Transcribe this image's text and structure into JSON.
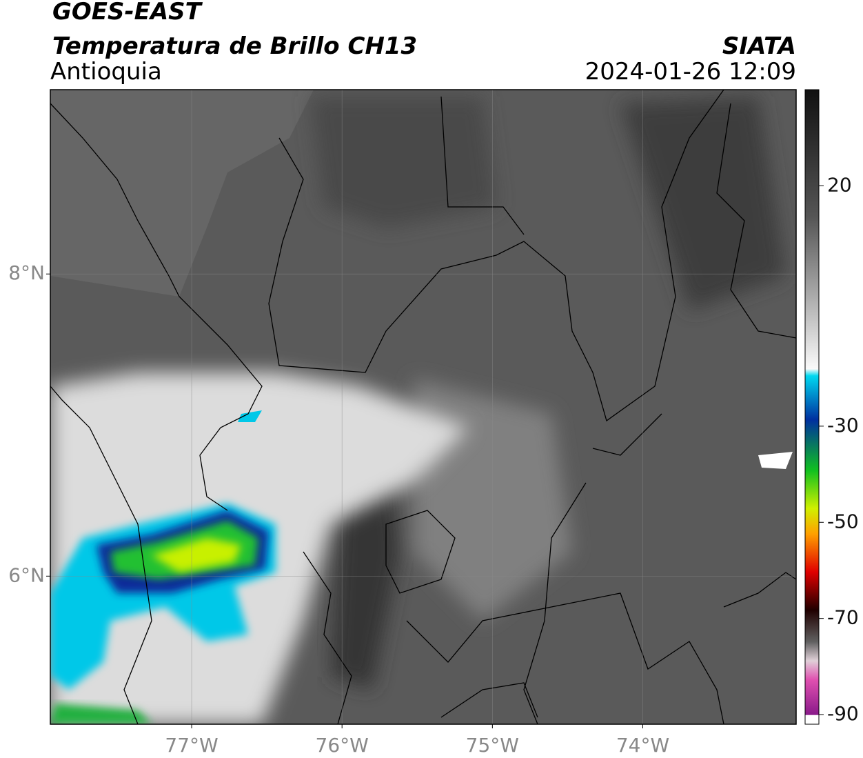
{
  "header": {
    "title": "GOES-EAST",
    "subtitle": "Temperatura de Brillo CH13",
    "region": "Antioquia",
    "source": "SIATA",
    "timestamp": "2024-01-26 12:09"
  },
  "map": {
    "xlim": [
      -77.94,
      -72.98
    ],
    "ylim": [
      5.02,
      9.22
    ],
    "xticks": [
      {
        "value": -77,
        "label": "77°W"
      },
      {
        "value": -76,
        "label": "76°W"
      },
      {
        "value": -75,
        "label": "75°W"
      },
      {
        "value": -74,
        "label": "74°W"
      }
    ],
    "yticks": [
      {
        "value": 8,
        "label": "8°N"
      },
      {
        "value": 6,
        "label": "6°N"
      }
    ],
    "grid": true
  },
  "colorbar": {
    "clim": [
      -92,
      40
    ],
    "ticks": [
      20,
      -30,
      -50,
      -70,
      -90
    ]
  }
}
